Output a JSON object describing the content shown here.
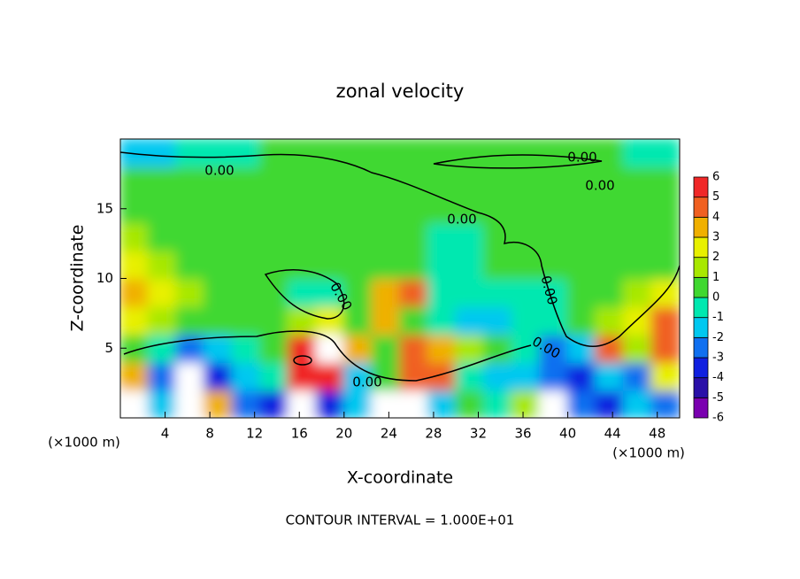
{
  "chart_data": {
    "type": "contour",
    "title": "zonal velocity",
    "x_label": "X-coordinate",
    "y_label": "Z-coordinate",
    "x_unit": "(×1000 m)",
    "note": "CONTOUR INTERVAL = 1.000E+01",
    "xlim": [
      0,
      50
    ],
    "ylim": [
      0,
      20
    ],
    "xticks": [
      4,
      8,
      12,
      16,
      20,
      24,
      28,
      32,
      36,
      40,
      44,
      48
    ],
    "yticks": [
      5,
      10,
      15
    ],
    "x_edges": [
      0,
      2.5,
      5,
      7.5,
      10,
      12.5,
      15,
      17.5,
      20,
      22.5,
      25,
      27.5,
      30,
      32.5,
      35,
      37.5,
      40,
      42.5,
      45,
      47.5,
      50
    ],
    "z_edges": [
      0,
      2,
      4,
      6,
      8,
      10,
      12,
      14,
      16,
      18,
      20
    ],
    "values": [
      [
        7,
        -2,
        7,
        3,
        -3,
        -4,
        7,
        -4,
        -2,
        7,
        7,
        -2,
        0.5,
        -1,
        1,
        7,
        -3,
        -4,
        -2,
        -3
      ],
      [
        3,
        -3,
        7,
        -4,
        -2,
        -0.5,
        5,
        5,
        -1.5,
        0.5,
        4,
        4.5,
        -1,
        -2,
        -1.5,
        -3,
        -4,
        -2,
        -3,
        2
      ],
      [
        0,
        -1,
        -3,
        -2,
        -0.5,
        0,
        5,
        7,
        3,
        0.3,
        4,
        3,
        1,
        0.3,
        -1,
        -3,
        -2,
        4,
        1,
        4.5
      ],
      [
        2,
        1.5,
        0.5,
        0.3,
        0.3,
        0.5,
        1,
        2,
        0.5,
        3,
        0,
        -1,
        -1.5,
        -2,
        -1,
        -0.5,
        0.5,
        1,
        2.5,
        4
      ],
      [
        3,
        2.5,
        1,
        0.5,
        0.3,
        0.3,
        -0.5,
        -0.3,
        0.3,
        3.5,
        4.5,
        -0.5,
        -1,
        -1,
        -0.5,
        -0.5,
        0,
        0.3,
        1,
        2
      ],
      [
        2,
        1.5,
        0.8,
        0.5,
        0.8,
        0.5,
        0.3,
        0.3,
        0.3,
        0.3,
        0,
        -0.5,
        -0.3,
        0,
        0,
        0,
        0,
        0.5,
        0.3,
        0.3
      ],
      [
        1,
        0.8,
        0.5,
        0.5,
        0.8,
        0.5,
        0.3,
        0.5,
        0.3,
        0.3,
        0.3,
        -0.3,
        -0.3,
        0,
        0.5,
        0.3,
        0.3,
        0.3,
        0,
        0.3
      ],
      [
        0.5,
        0.8,
        0.8,
        0.5,
        0.5,
        0.5,
        0.5,
        0.5,
        0.3,
        0.5,
        0.3,
        0.3,
        0.3,
        0.3,
        0.3,
        0.5,
        0.5,
        0.5,
        0.3,
        0.3
      ],
      [
        0,
        0.3,
        0.5,
        0.5,
        0.5,
        0.5,
        0.5,
        0.5,
        0.5,
        0.3,
        0.3,
        0.3,
        0,
        0,
        0,
        0.3,
        0.3,
        0,
        0,
        0
      ],
      [
        -1.5,
        -1.5,
        -1,
        -1,
        -0.5,
        0,
        0,
        0,
        0,
        0,
        0,
        0.3,
        0.5,
        0.8,
        0.8,
        0.5,
        0.3,
        0,
        -0.5,
        -1
      ]
    ],
    "contour_level": {
      "value": 0,
      "label": "0.00"
    },
    "colorbar": {
      "levels": [
        -6,
        -5,
        -4,
        -3,
        -2,
        -1,
        0,
        1,
        2,
        3,
        4,
        5,
        6
      ],
      "colors": [
        "#7a00b0",
        "#2a10a8",
        "#1020e0",
        "#1070f0",
        "#00c8f0",
        "#00e8b0",
        "#40d830",
        "#a8e800",
        "#e8f000",
        "#f0b000",
        "#f06020",
        "#f02828"
      ],
      "over_color": "#ffffff"
    }
  }
}
